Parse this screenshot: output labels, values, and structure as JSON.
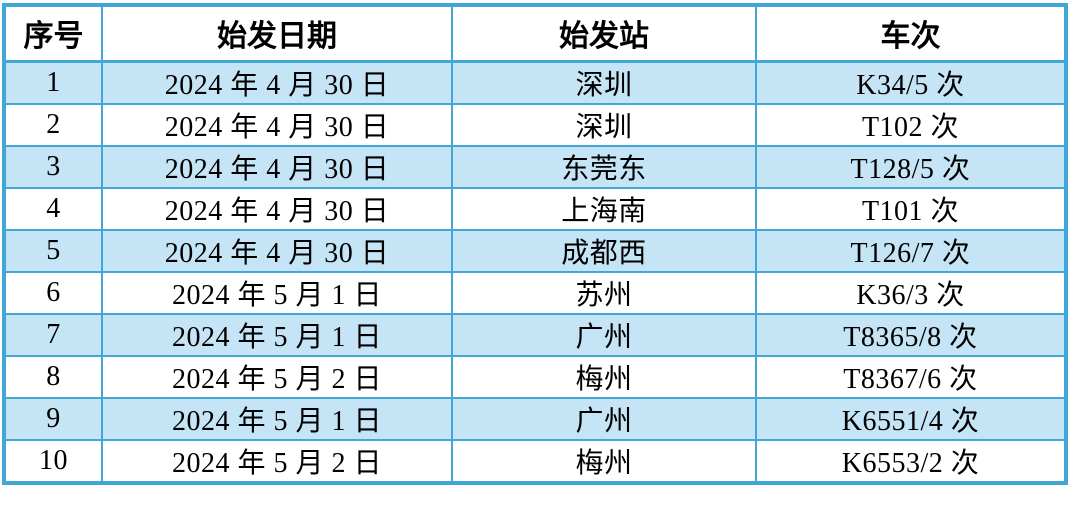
{
  "table": {
    "headers": [
      {
        "key": "num",
        "label": "序号"
      },
      {
        "key": "date",
        "label": "始发日期"
      },
      {
        "key": "station",
        "label": "始发站"
      },
      {
        "key": "train",
        "label": "车次"
      }
    ],
    "rows": [
      {
        "num": "1",
        "date": "2024 年 4 月 30 日",
        "station": "深圳",
        "train": "K34/5 次"
      },
      {
        "num": "2",
        "date": "2024 年 4 月 30 日",
        "station": "深圳",
        "train": "T102 次"
      },
      {
        "num": "3",
        "date": "2024 年 4 月 30 日",
        "station": "东莞东",
        "train": "T128/5 次"
      },
      {
        "num": "4",
        "date": "2024 年 4 月 30 日",
        "station": "上海南",
        "train": "T101 次"
      },
      {
        "num": "5",
        "date": "2024 年 4 月 30 日",
        "station": "成都西",
        "train": "T126/7 次"
      },
      {
        "num": "6",
        "date": "2024 年 5 月 1 日",
        "station": "苏州",
        "train": "K36/3 次"
      },
      {
        "num": "7",
        "date": "2024 年 5 月 1 日",
        "station": "广州",
        "train": "T8365/8 次"
      },
      {
        "num": "8",
        "date": "2024 年 5 月 2 日",
        "station": "梅州",
        "train": "T8367/6 次"
      },
      {
        "num": "9",
        "date": "2024 年 5 月 1 日",
        "station": "广州",
        "train": "K6551/4 次"
      },
      {
        "num": "10",
        "date": "2024 年 5 月 2 日",
        "station": "梅州",
        "train": "K6553/2 次"
      }
    ]
  },
  "colors": {
    "grid": "#41a8d6",
    "row_shade": "#c5e4f5",
    "header_bg": "#ffffff",
    "text": "#000000"
  }
}
